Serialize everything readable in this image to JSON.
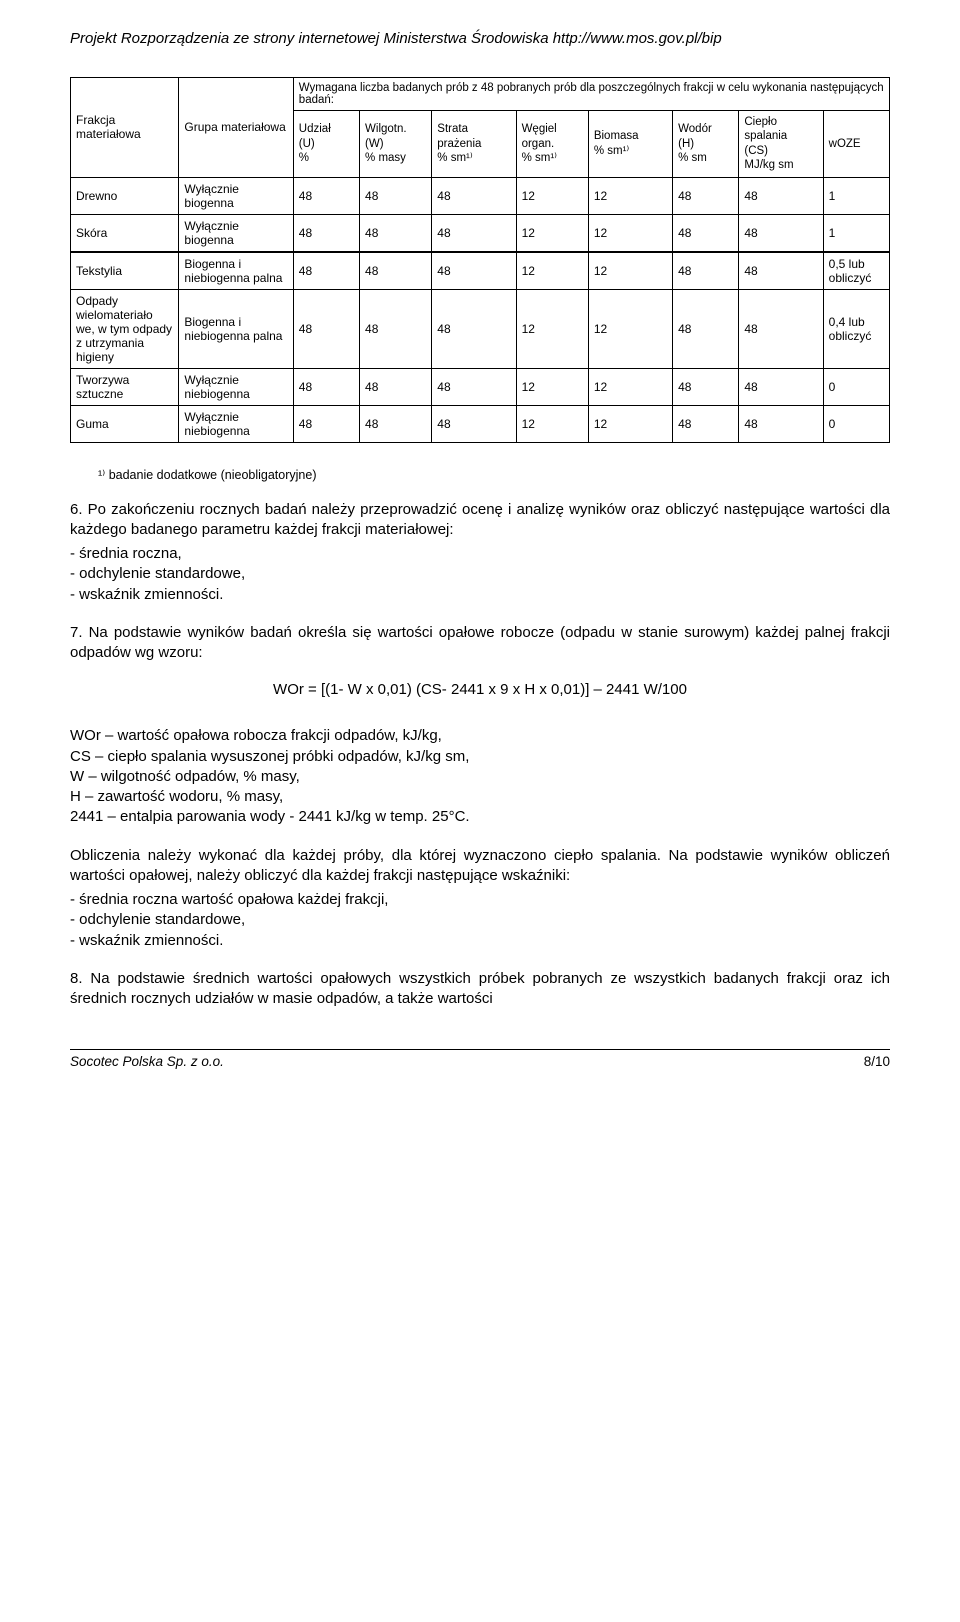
{
  "header": "Projekt Rozporządzenia ze strony internetowej Ministerstwa Środowiska http://www.mos.gov.pl/bip",
  "table1": {
    "top_caption": "Wymagana liczba badanych prób z 48 pobranych prób dla poszczególnych frakcji w celu wykonania następujących badań:",
    "h_frakcja": "Frakcja materiałowa",
    "h_grupa": "Grupa materiałowa",
    "h_udzial": "Udział\n(U)\n%",
    "h_wilg": "Wilgotn.\n(W)\n% masy",
    "h_strata": "Strata prażenia\n% sm¹⁾",
    "h_wegiel": "Węgiel organ.\n% sm¹⁾",
    "h_biomasa": "Biomasa\n% sm¹⁾",
    "h_wodor": "Wodór\n(H)\n% sm",
    "h_cieplo": "Ciepło spalania\n(CS)\nMJ/kg sm",
    "h_woze": "wOZE",
    "rows_a": [
      {
        "f": "Drewno",
        "g": "Wyłącznie biogenna",
        "v": [
          "48",
          "48",
          "48",
          "12",
          "12",
          "48",
          "48",
          "1"
        ]
      },
      {
        "f": "Skóra",
        "g": "Wyłącznie biogenna",
        "v": [
          "48",
          "48",
          "48",
          "12",
          "12",
          "48",
          "48",
          "1"
        ]
      }
    ],
    "rows_b": [
      {
        "f": "Tekstylia",
        "g": "Biogenna i niebiogenna palna",
        "v": [
          "48",
          "48",
          "48",
          "12",
          "12",
          "48",
          "48",
          "0,5 lub obliczyć"
        ]
      },
      {
        "f": "Odpady wielomateriało we, w tym odpady z utrzymania higieny",
        "g": "Biogenna i niebiogenna palna",
        "v": [
          "48",
          "48",
          "48",
          "12",
          "12",
          "48",
          "48",
          "0,4 lub obliczyć"
        ]
      },
      {
        "f": "Tworzywa sztuczne",
        "g": "Wyłącznie niebiogenna",
        "v": [
          "48",
          "48",
          "48",
          "12",
          "12",
          "48",
          "48",
          "0"
        ]
      },
      {
        "f": "Guma",
        "g": "Wyłącznie niebiogenna",
        "v": [
          "48",
          "48",
          "48",
          "12",
          "12",
          "48",
          "48",
          "0"
        ]
      }
    ],
    "footnote": "¹⁾ badanie dodatkowe (nieobligatoryjne)"
  },
  "p6": "6. Po zakończeniu rocznych badań należy przeprowadzić ocenę i analizę wyników oraz obliczyć następujące wartości dla każdego badanego parametru każdej frakcji materiałowej:",
  "p6a": "- średnia roczna,",
  "p6b": "- odchylenie standardowe,",
  "p6c": "- wskaźnik zmienności.",
  "p7": "7. Na podstawie wyników badań określa się wartości opałowe robocze (odpadu w stanie surowym) każdej palnej frakcji odpadów wg wzoru:",
  "formula": "WOr = [(1- W x 0,01) (CS- 2441 x 9 x H x 0,01)] – 2441 W/100",
  "defs": [
    "WOr – wartość opałowa robocza frakcji odpadów, kJ/kg,",
    "CS – ciepło spalania wysuszonej próbki odpadów, kJ/kg sm,",
    "W – wilgotność odpadów, % masy,",
    "H – zawartość wodoru, % masy,",
    "2441 – entalpia parowania wody - 2441 kJ/kg w temp. 25°C."
  ],
  "p_obl": "Obliczenia należy wykonać dla każdej próby, dla której wyznaczono ciepło spalania. Na podstawie wyników obliczeń wartości opałowej, należy obliczyć dla każdej frakcji następujące wskaźniki:",
  "p_obl_a": "- średnia roczna wartość opałowa każdej frakcji,",
  "p_obl_b": "- odchylenie standardowe,",
  "p_obl_c": "- wskaźnik zmienności.",
  "p8": "8. Na podstawie średnich wartości opałowych wszystkich próbek pobranych ze wszystkich badanych frakcji oraz ich średnich rocznych udziałów w masie odpadów, a także wartości",
  "footer_left": "Socotec Polska Sp. z o.o.",
  "footer_right": "8/10"
}
